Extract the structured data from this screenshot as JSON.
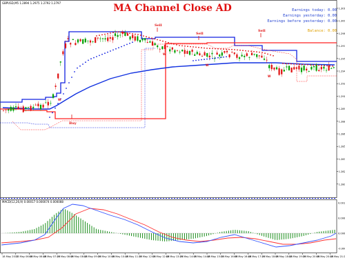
{
  "chart": {
    "symbol_info": "GBPUSD,M5 1.2894 1.2975 1.2792 1.2797",
    "title": "MA Channel Close AD",
    "macd_info": "MACD(12,26,9) 0.00017 0.000074 0.000088"
  },
  "stats": {
    "earnings_today": "Earnings today: 0.00",
    "earnings_yesterday": "Earnings yesterday: 0.00",
    "earnings_before_yesterday": "Earnings before yesterday: 0.00",
    "balance": "Balance: 0.00"
  },
  "signals": [
    {
      "label": "Buy",
      "color": "#e01010"
    },
    {
      "label": "Sell",
      "color": "#e01010"
    },
    {
      "label": "Sell",
      "color": "#e01010"
    },
    {
      "label": "Sell",
      "color": "#e01010"
    }
  ],
  "price_axis": [
    "1.3015",
    "1.3000",
    "1.2985",
    "1.2970",
    "1.2955",
    "1.2940",
    "1.2925",
    "1.2910",
    "1.2895",
    "1.2880",
    "1.2865",
    "1.2850",
    "1.2835",
    "1.2820",
    "1.2805"
  ],
  "macd_axis": [
    "0.00129",
    "0.00065",
    "0.00000",
    "-0.00065"
  ],
  "time_axis": [
    "18 May 2017",
    "18 May 06:05",
    "18 May 06:45",
    "18 May 07:25",
    "18 May 08:05",
    "18 May 08:45",
    "18 May 09:25",
    "18 May 10:05",
    "18 May 10:45",
    "18 May 11:25",
    "18 May 12:05",
    "18 May 12:45",
    "18 May 13:25",
    "18 May 14:05",
    "18 May 14:45",
    "18 May 15:25",
    "18 May 16:05",
    "18 May 16:45",
    "18 May 17:25",
    "18 May 18:05",
    "18 May 18:45",
    "18 May 19:25",
    "18 May 20:05",
    "18 May 20:45",
    "18 May 21:25"
  ],
  "colors": {
    "bull_candle": "#00a000",
    "bear_candle": "#e01010",
    "upper_channel": "#1020e0",
    "lower_channel": "#ff2020",
    "moving_average": "#1030e0",
    "trailing_dots_blue": "#1020e0",
    "trailing_dots_red": "#e01010",
    "macd_main": "#3050ff",
    "macd_signal": "#ff3030",
    "macd_hist": "#008000"
  }
}
